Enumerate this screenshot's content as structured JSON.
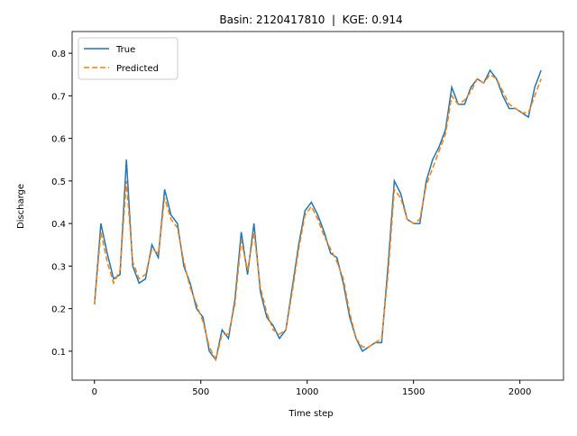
{
  "chart_data": {
    "type": "line",
    "title": "Basin: 2120417810  |  KGE: 0.914",
    "xlabel": "Time step",
    "ylabel": "Discharge",
    "x": [
      0,
      30,
      60,
      90,
      120,
      150,
      180,
      210,
      240,
      270,
      300,
      330,
      360,
      390,
      420,
      450,
      480,
      510,
      540,
      570,
      600,
      630,
      660,
      690,
      720,
      750,
      780,
      810,
      840,
      870,
      900,
      930,
      960,
      990,
      1020,
      1050,
      1080,
      1110,
      1140,
      1170,
      1200,
      1230,
      1260,
      1290,
      1320,
      1350,
      1380,
      1410,
      1440,
      1470,
      1500,
      1530,
      1560,
      1590,
      1620,
      1650,
      1680,
      1710,
      1740,
      1770,
      1800,
      1830,
      1860,
      1890,
      1920,
      1950,
      1980,
      2010,
      2040,
      2070,
      2100
    ],
    "series": [
      {
        "name": "True",
        "color": "#1f77b4",
        "dash": "none",
        "values": [
          0.21,
          0.4,
          0.33,
          0.27,
          0.28,
          0.55,
          0.3,
          0.26,
          0.27,
          0.35,
          0.32,
          0.48,
          0.42,
          0.4,
          0.3,
          0.26,
          0.2,
          0.18,
          0.1,
          0.08,
          0.15,
          0.13,
          0.22,
          0.38,
          0.28,
          0.4,
          0.24,
          0.18,
          0.16,
          0.13,
          0.15,
          0.25,
          0.35,
          0.43,
          0.45,
          0.42,
          0.38,
          0.33,
          0.32,
          0.26,
          0.18,
          0.13,
          0.1,
          0.11,
          0.12,
          0.12,
          0.3,
          0.5,
          0.47,
          0.41,
          0.4,
          0.4,
          0.5,
          0.55,
          0.58,
          0.62,
          0.72,
          0.68,
          0.68,
          0.72,
          0.74,
          0.73,
          0.76,
          0.74,
          0.7,
          0.67,
          0.67,
          0.66,
          0.65,
          0.72,
          0.76
        ]
      },
      {
        "name": "Predicted",
        "color": "#ff7f0e",
        "dash": "6,3",
        "values": [
          0.21,
          0.38,
          0.31,
          0.26,
          0.29,
          0.5,
          0.31,
          0.27,
          0.28,
          0.34,
          0.33,
          0.46,
          0.41,
          0.39,
          0.31,
          0.25,
          0.21,
          0.17,
          0.11,
          0.08,
          0.14,
          0.14,
          0.21,
          0.36,
          0.29,
          0.38,
          0.25,
          0.19,
          0.15,
          0.14,
          0.15,
          0.24,
          0.34,
          0.42,
          0.44,
          0.41,
          0.37,
          0.34,
          0.31,
          0.27,
          0.19,
          0.13,
          0.11,
          0.11,
          0.12,
          0.13,
          0.28,
          0.48,
          0.46,
          0.41,
          0.4,
          0.41,
          0.49,
          0.53,
          0.57,
          0.61,
          0.7,
          0.68,
          0.69,
          0.71,
          0.74,
          0.73,
          0.75,
          0.74,
          0.71,
          0.68,
          0.67,
          0.66,
          0.66,
          0.7,
          0.74
        ]
      }
    ],
    "xlim": [
      -105,
      2205
    ],
    "ylim": [
      0.032,
      0.851
    ],
    "xticks": [
      0,
      500,
      1000,
      1500,
      2000
    ],
    "yticks": [
      0.1,
      0.2,
      0.3,
      0.4,
      0.5,
      0.6,
      0.7,
      0.8
    ],
    "legend": "upper-left"
  }
}
